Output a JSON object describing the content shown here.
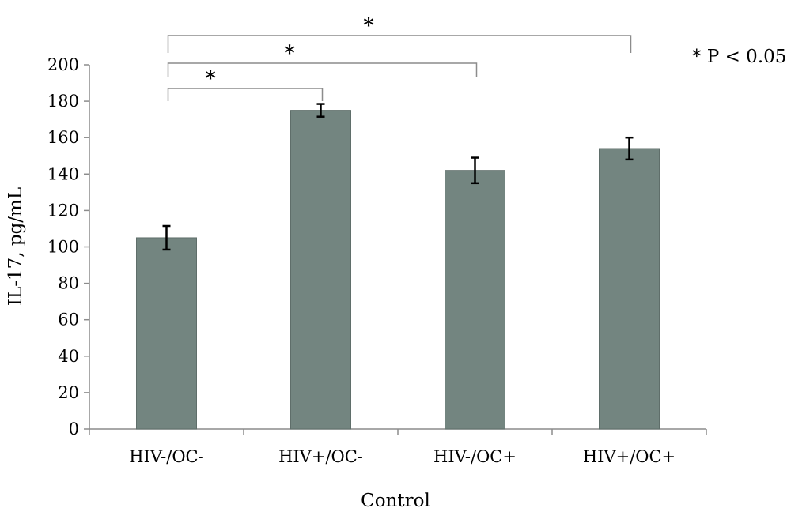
{
  "chart_data": {
    "type": "bar",
    "categories": [
      "HIV-/OC-",
      "HIV+/OC-",
      "HIV-/OC+",
      "HIV+/OC+"
    ],
    "values": [
      105,
      175,
      142,
      154
    ],
    "errors": [
      6.5,
      3.5,
      7,
      6
    ],
    "title": "",
    "xlabel": "Control",
    "ylabel": "IL-17, pg/mL",
    "ylim": [
      0,
      200
    ],
    "yticks": [
      0,
      20,
      40,
      60,
      80,
      100,
      120,
      140,
      160,
      180,
      200
    ],
    "bar_color": "#738580",
    "error_bar_color": "#000000",
    "grid": false,
    "legend": "none",
    "significance": [
      {
        "from": "HIV-/OC-",
        "to": "HIV+/OC-",
        "label": "*"
      },
      {
        "from": "HIV-/OC-",
        "to": "HIV-/OC+",
        "label": "*"
      },
      {
        "from": "HIV-/OC-",
        "to": "HIV+/OC+",
        "label": "*"
      }
    ],
    "note": "* P < 0.05"
  }
}
